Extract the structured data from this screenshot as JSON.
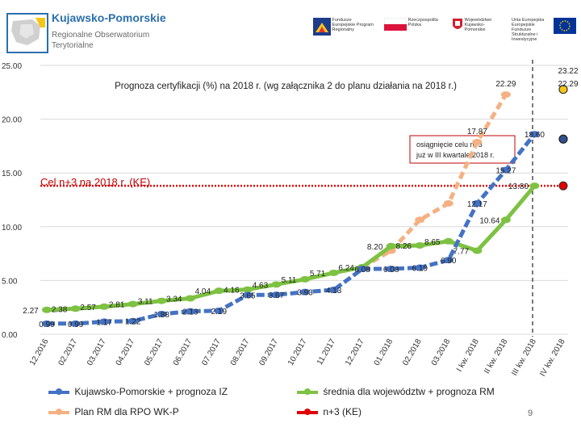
{
  "header": {
    "logo_title": "Kujawsko-Pomorskie",
    "logo_sub1": "Regionalne Obserwatorium",
    "logo_sub2": "Terytorialne",
    "eu_logos": [
      "Fundusze Europejskie Program Regionalny",
      "Rzeczpospolita Polska",
      "Województwo Kujawsko-Pomorskie",
      "Unia Europejska Europejskie Fundusze Strukturalne i Inwestycyjne"
    ]
  },
  "page_number": "9",
  "colors": {
    "kujawsko": "#4472c4",
    "srednia": "#7dc242",
    "plan": "#f4b183",
    "n3": "#e00000",
    "highlight": "#f5c518"
  },
  "chart_data": {
    "type": "line",
    "title": "Prognoza certyfikacji (%) na 2018 r. (wg załącznika 2 do planu działania na 2018 r.)",
    "ylim": [
      0,
      25
    ],
    "yticks": [
      "0.00",
      "5.00",
      "10.00",
      "15.00",
      "20.00",
      "25.00"
    ],
    "categories": [
      "12.2016",
      "02.2017",
      "03.2017",
      "04.2017",
      "05.2017",
      "06.2017",
      "07.2017",
      "08.2017",
      "09.2017",
      "10.2017",
      "11.2017",
      "12.2017",
      "01.2018",
      "02.2018",
      "03.2018",
      "I kw. 2018",
      "II kw. 2018",
      "III kw. 2018",
      "IV kw. 2018"
    ],
    "series": [
      {
        "name": "Kujawsko-Pomorskie + prognoza IZ",
        "values": [
          0.99,
          0.99,
          1.17,
          1.22,
          1.88,
          2.13,
          2.19,
          3.65,
          3.67,
          3.93,
          4.13,
          6.08,
          6.08,
          6.19,
          6.9,
          12.17,
          15.27,
          18.6,
          null
        ],
        "labels": [
          "0.99",
          "0.99",
          "1.17",
          "1.22",
          "1.88",
          "2.13",
          "2.19",
          "3.65",
          "3.67",
          "3.93",
          "4.13",
          "6.08",
          "6.08",
          "6.19",
          "6.90",
          "12.17",
          "15.27",
          "18.60",
          ""
        ]
      },
      {
        "name": "średnia dla województw + prognoza RM",
        "values": [
          2.27,
          2.38,
          2.57,
          2.81,
          3.11,
          3.34,
          4.04,
          4.16,
          4.63,
          5.11,
          5.71,
          6.24,
          8.2,
          8.26,
          8.65,
          7.77,
          10.64,
          13.8,
          null
        ],
        "labels": [
          "2.27",
          "2.38",
          "2.57",
          "2.81",
          "3.11",
          "3.34",
          "4.04",
          "4.16",
          "4.63",
          "5.11",
          "5.71",
          "6.24",
          "8.20",
          "8.26",
          "8.65",
          "7.77",
          "10.64",
          "13.80",
          ""
        ]
      },
      {
        "name": "Plan RM dla RPO WK-P",
        "values": [
          null,
          null,
          null,
          null,
          null,
          null,
          null,
          null,
          null,
          null,
          null,
          6.24,
          7.77,
          10.64,
          12.17,
          17.87,
          22.29,
          null,
          null
        ],
        "labels": [
          "",
          "",
          "",
          "",
          "",
          "",
          "",
          "",
          "",
          "",
          "",
          "",
          "",
          "",
          "",
          "17.87",
          "22.29",
          "",
          ""
        ]
      },
      {
        "name": "n+3 (KE)",
        "values": [
          13.8,
          13.8,
          13.8,
          13.8,
          13.8,
          13.8,
          13.8,
          13.8,
          13.8,
          13.8,
          13.8,
          13.8,
          13.8,
          13.8,
          13.8,
          13.8,
          13.8,
          13.8,
          13.8
        ]
      }
    ],
    "extra_labels": {
      "top_value_1": "23.22",
      "top_value_2": "22.29"
    },
    "annotation_goal": "Cel n+3 na 2018 r. (KE)",
    "annotation_callout_1": "osiągnięcie celu n+3",
    "annotation_callout_2": "już w III kwartale 2018 r.",
    "grid": true,
    "legend_position": "bottom"
  }
}
